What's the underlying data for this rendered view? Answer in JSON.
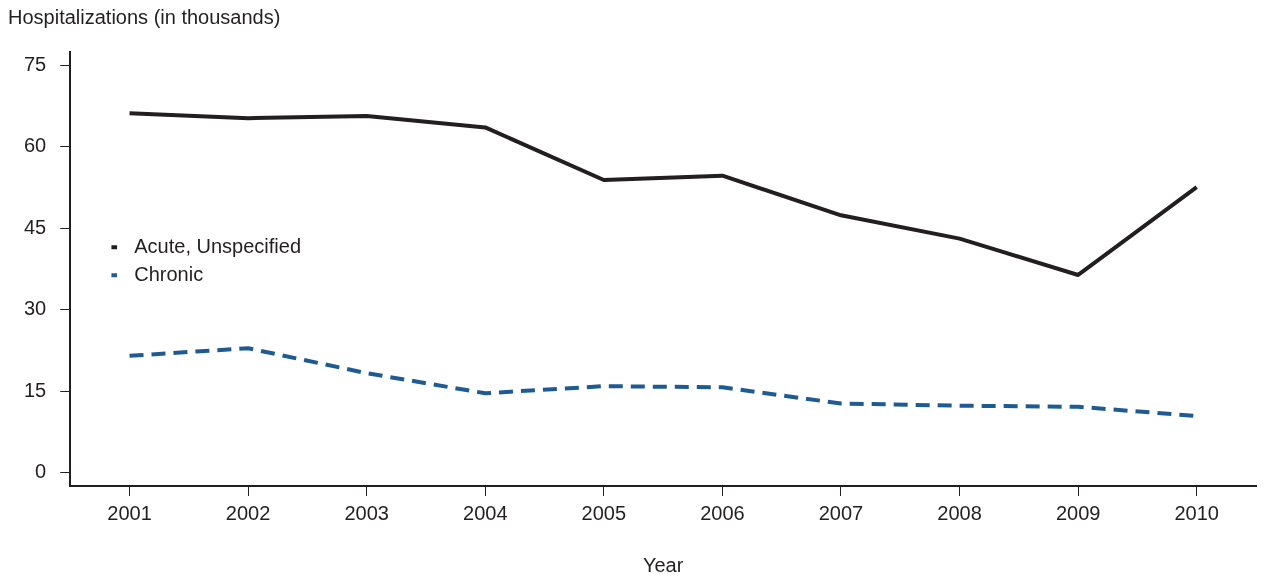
{
  "chart_data": {
    "type": "line",
    "xlabel": "Year",
    "ylabel": "Hospitalizations (in thousands)",
    "categories": [
      "2001",
      "2002",
      "2003",
      "2004",
      "2005",
      "2006",
      "2007",
      "2008",
      "2009",
      "2010"
    ],
    "series": [
      {
        "name": "Acute, Unspecified",
        "color": "#231f20",
        "line_style": "solid",
        "values": [
          66.2,
          65.3,
          65.7,
          63.6,
          53.9,
          54.7,
          47.4,
          43.1,
          36.4,
          52.6
        ]
      },
      {
        "name": "Chronic",
        "color": "#1f5b93",
        "line_style": "dashed",
        "values": [
          21.5,
          22.9,
          18.3,
          14.6,
          15.9,
          15.7,
          12.7,
          12.3,
          12.1,
          10.4
        ]
      }
    ],
    "ylim": [
      -2.5,
      77.5
    ],
    "yticks": [
      0,
      15,
      30,
      45,
      60,
      75
    ],
    "grid": false,
    "legend": "left",
    "marker": "none"
  }
}
